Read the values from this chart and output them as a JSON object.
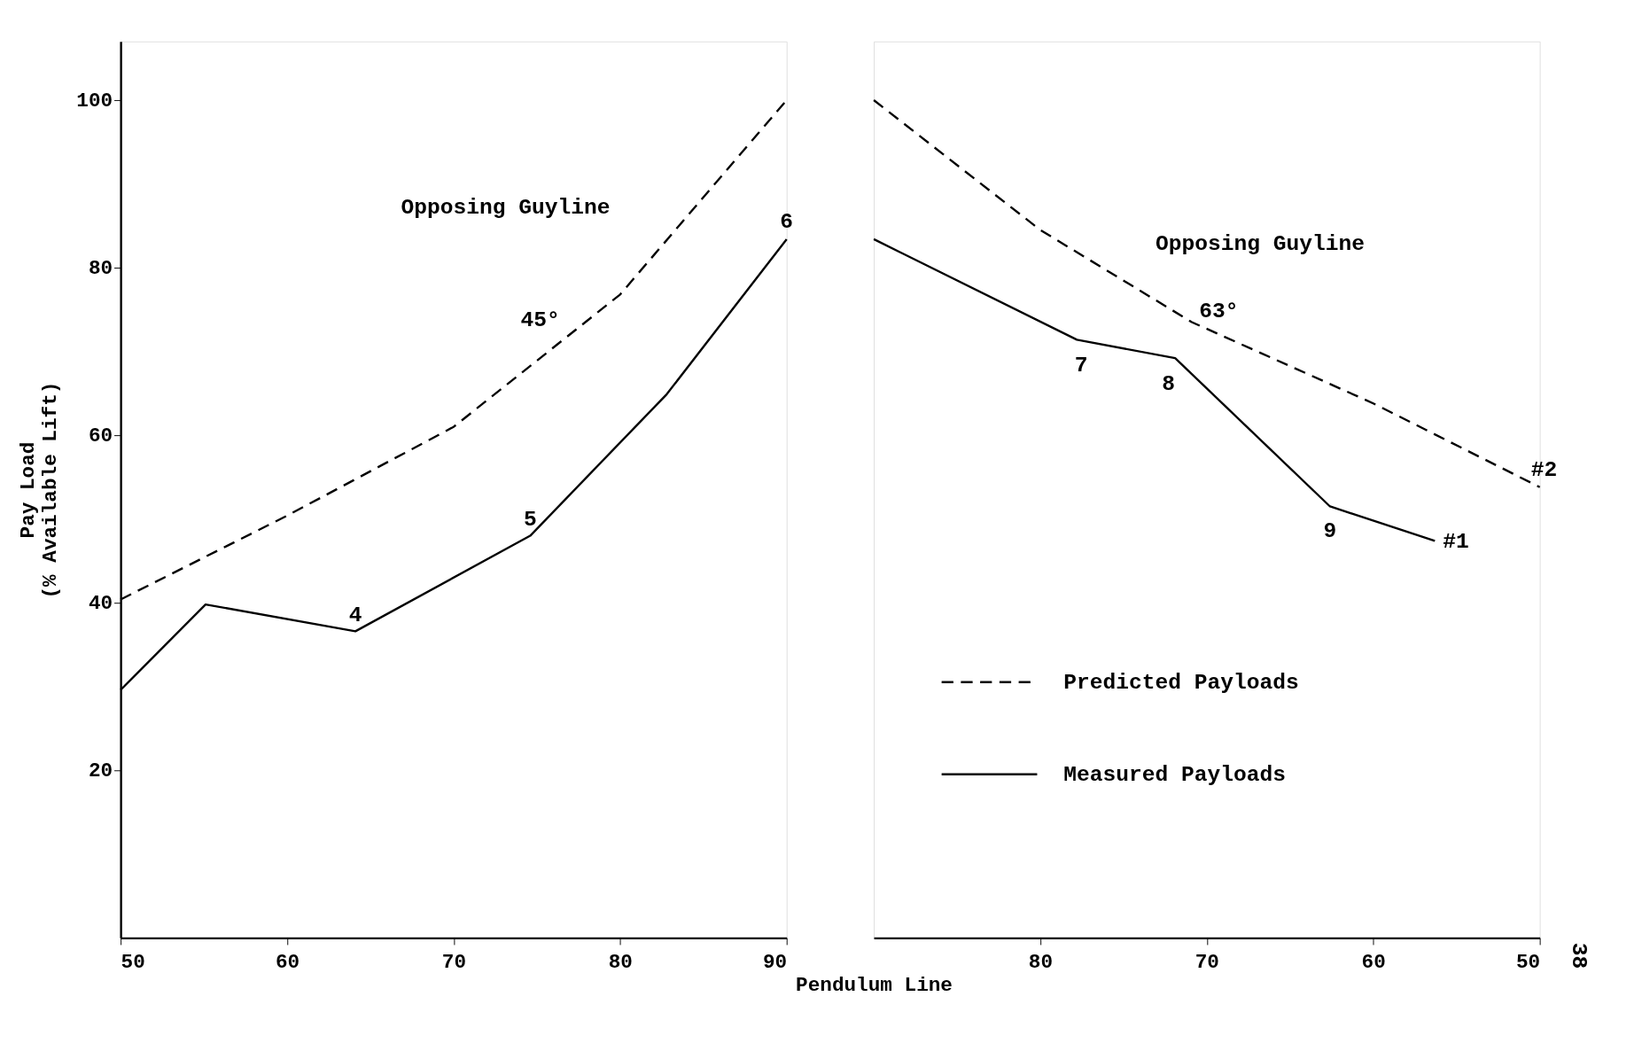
{
  "chart_data": [
    {
      "type": "line",
      "ylabel": "Pay Load\n(% Available Lift)",
      "xlim": [
        50,
        90
      ],
      "xticks": [
        50,
        60,
        70,
        80,
        90
      ],
      "ylim": [
        0,
        107
      ],
      "yticks": [
        20,
        40,
        60,
        80,
        100
      ],
      "grid": false,
      "marker": "none",
      "series": [
        {
          "color": "#000000",
          "line_style": "dashed",
          "x": [
            50,
            60,
            70,
            80,
            90
          ],
          "values": [
            40.4,
            50.4,
            61,
            76.8,
            100
          ]
        },
        {
          "color": "#000000",
          "line_style": "solid",
          "x": [
            50,
            55.1,
            64.1,
            74.6,
            82.8,
            90
          ],
          "values": [
            29.6,
            39.8,
            36.6,
            48,
            64.9,
            83.4
          ]
        }
      ],
      "annotations": [
        "Opposing Guyline",
        "45°",
        {
          "text": "4",
          "x": 64.1,
          "y": 36.6
        },
        {
          "text": "5",
          "x": 74.6,
          "y": 48
        },
        {
          "text": "6",
          "x": 90,
          "y": 83.4
        }
      ]
    },
    {
      "type": "line",
      "xlabel": "Pendulum Line",
      "xlim": [
        90,
        50
      ],
      "xticks": [
        80,
        70,
        60,
        50
      ],
      "ylim": [
        0,
        107
      ],
      "tick_labels": "x",
      "grid": false,
      "legend": "bottom",
      "marker": "none",
      "series": [
        {
          "name": "Predicted Payloads",
          "color": "#000000",
          "line_style": "dashed",
          "x": [
            90,
            80,
            70.9,
            60,
            50
          ],
          "values": [
            100,
            84.5,
            73.5,
            63.8,
            53.8
          ]
        },
        {
          "name": "Measured Payloads",
          "color": "#000000",
          "line_style": "solid",
          "x": [
            90,
            77.8,
            71.9,
            62.6,
            56.3
          ],
          "values": [
            83.4,
            71.4,
            69.2,
            51.5,
            47.4
          ]
        }
      ],
      "annotations": [
        "Opposing Guyline",
        "63°",
        {
          "text": "7",
          "x": 77.8,
          "y": 71.4
        },
        {
          "text": "8",
          "x": 71.9,
          "y": 69.2
        },
        {
          "text": "9",
          "x": 62.6,
          "y": 51.5
        },
        {
          "text": "#1",
          "x": 56.3,
          "y": 47.4
        },
        {
          "text": "#2",
          "x": 50,
          "y": 53.8
        },
        "38"
      ]
    }
  ]
}
